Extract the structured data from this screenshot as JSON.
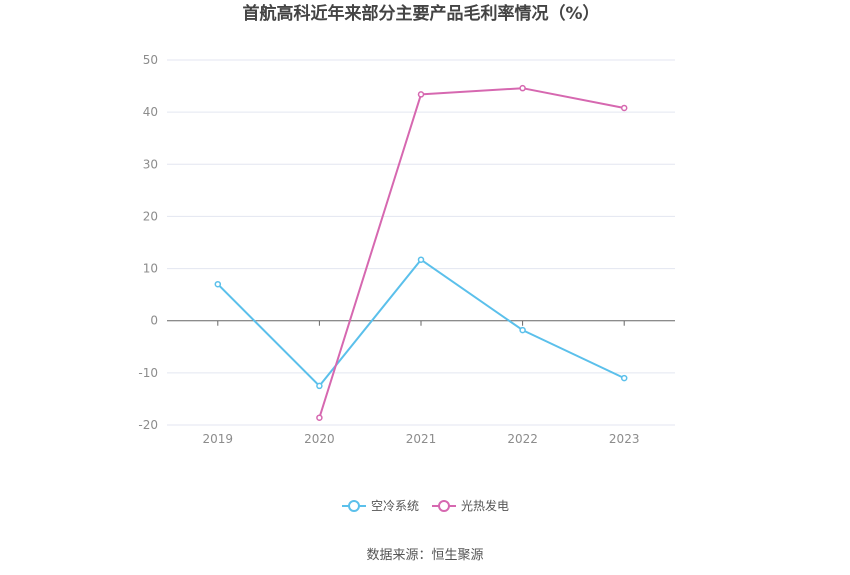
{
  "chart_data": {
    "type": "line",
    "title": "首航高科近年来部分主要产品毛利率情况（%）",
    "categories": [
      "2019",
      "2020",
      "2021",
      "2022",
      "2023"
    ],
    "ylim": [
      -20,
      50
    ],
    "yticks": [
      50,
      40,
      30,
      20,
      10,
      0,
      -10,
      -20
    ],
    "grid": true,
    "legend_position": "bottom",
    "series": [
      {
        "name": "空冷系统",
        "color": "#5bc0eb",
        "values": [
          7.0,
          -12.5,
          11.7,
          -1.8,
          -11.0
        ]
      },
      {
        "name": "光热发电",
        "color": "#d668b0",
        "values": [
          null,
          -18.6,
          43.4,
          44.6,
          40.8
        ]
      }
    ],
    "source": "数据来源：恒生聚源"
  }
}
